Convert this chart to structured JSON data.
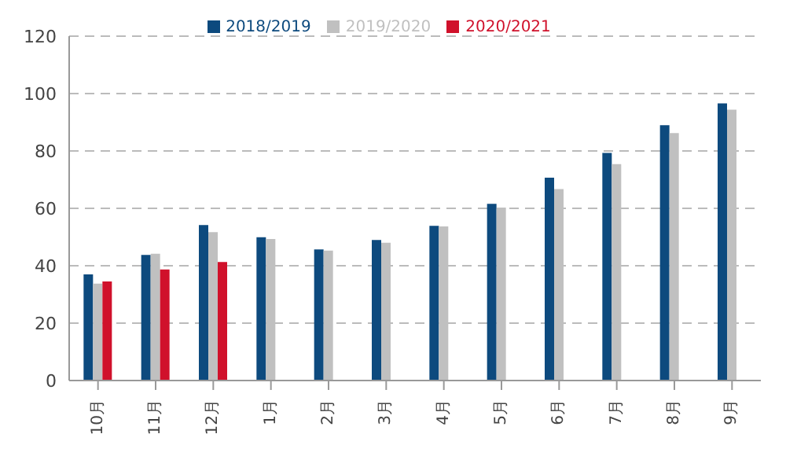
{
  "chart_data": {
    "type": "bar",
    "categories": [
      "10月",
      "11月",
      "12月",
      "1月",
      "2月",
      "3月",
      "4月",
      "5月",
      "6月",
      "7月",
      "8月",
      "9月"
    ],
    "series": [
      {
        "name": "2018/2019",
        "color": "#0d4a7e",
        "values": [
          37,
          43.8,
          54.2,
          49.9,
          45.7,
          49,
          53.9,
          61.6,
          70.7,
          79.3,
          89,
          96.6
        ]
      },
      {
        "name": "2019/2020",
        "color": "#c0c0c0",
        "values": [
          33.8,
          44.2,
          51.7,
          49.3,
          45.3,
          48,
          53.7,
          60.3,
          66.7,
          75.4,
          86.2,
          94.4
        ]
      },
      {
        "name": "2020/2021",
        "color": "#d0112b",
        "values": [
          34.5,
          38.7,
          41.3,
          null,
          null,
          null,
          null,
          null,
          null,
          null,
          null,
          null
        ]
      }
    ],
    "ylim": [
      0,
      120
    ],
    "yticks": [
      0,
      20,
      40,
      60,
      80,
      100,
      120
    ],
    "grid": "y",
    "legend": "top"
  }
}
